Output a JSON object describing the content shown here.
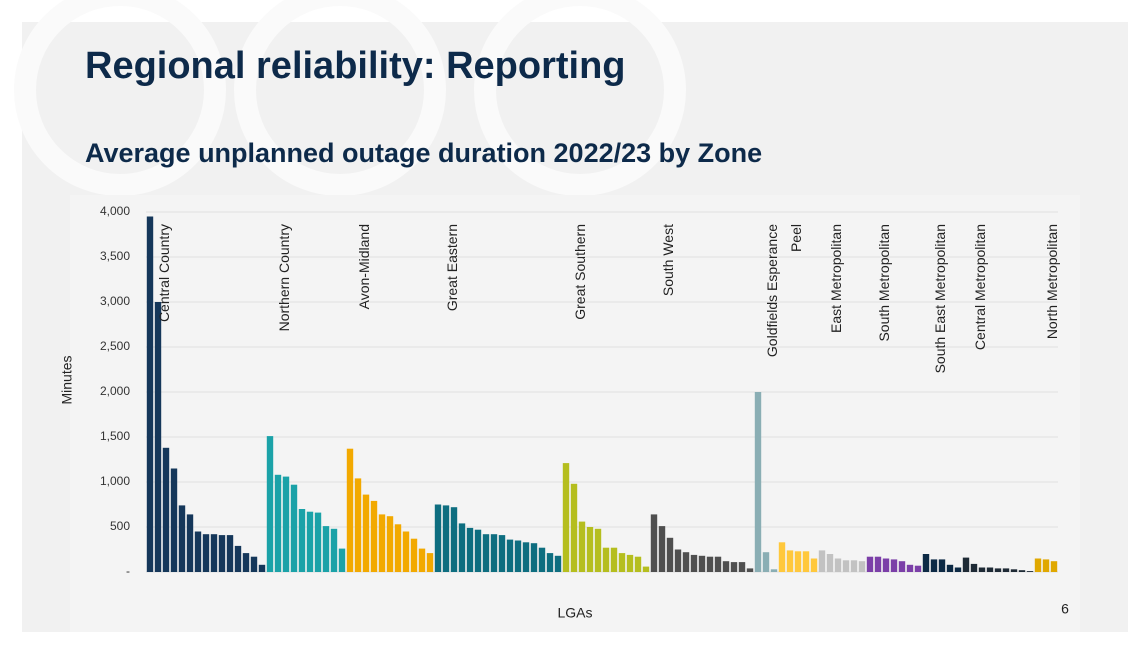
{
  "slide_title": "Regional reliability: Reporting",
  "page_number": "6",
  "chart_data": {
    "type": "bar",
    "title": "Average unplanned outage duration 2022/23 by Zone",
    "ylabel": "Minutes",
    "xlabel": "LGAs",
    "ylim": [
      0,
      4000
    ],
    "yticks": [
      {
        "value": 0,
        "label": "-"
      },
      500,
      {
        "value": 1000,
        "label": "1,000"
      },
      {
        "value": 1500,
        "label": "1,500"
      },
      {
        "value": 2000,
        "label": "2,000"
      },
      {
        "value": 2500,
        "label": "2,500"
      },
      {
        "value": 3000,
        "label": "3,000"
      },
      {
        "value": 3500,
        "label": "3,500"
      },
      {
        "value": 4000,
        "label": "4,000"
      }
    ],
    "grid": true,
    "series": [
      {
        "name": "Central Country",
        "color": "#15375a",
        "values": [
          3950,
          3000,
          1380,
          1150,
          740,
          640,
          450,
          420,
          420,
          410,
          410,
          290,
          210,
          170,
          80
        ]
      },
      {
        "name": "Northern Country",
        "color": "#1ba2a8",
        "values": [
          1510,
          1080,
          1060,
          970,
          700,
          670,
          660,
          510,
          480,
          260
        ]
      },
      {
        "name": "Avon-Midland",
        "color": "#f2a900",
        "values": [
          1370,
          1040,
          860,
          790,
          640,
          620,
          530,
          450,
          370,
          260,
          210
        ]
      },
      {
        "name": "Great Eastern",
        "color": "#0e6e80",
        "values": [
          750,
          740,
          720,
          540,
          490,
          470,
          420,
          420,
          410,
          360,
          350,
          330,
          320,
          270,
          210,
          180
        ]
      },
      {
        "name": "Great Southern",
        "color": "#b5be1e",
        "values": [
          1210,
          980,
          560,
          500,
          480,
          270,
          270,
          210,
          190,
          170,
          60
        ]
      },
      {
        "name": "South West",
        "color": "#4f4f4f",
        "values": [
          640,
          510,
          380,
          250,
          220,
          190,
          180,
          170,
          170,
          120,
          110,
          110,
          40
        ]
      },
      {
        "name": "Goldfields Esperance",
        "color": "#8aaeb4",
        "values": [
          2000,
          220,
          30
        ]
      },
      {
        "name": "Peel",
        "color": "#ffc83c",
        "values": [
          330,
          240,
          230,
          230,
          150
        ]
      },
      {
        "name": "East Metropolitan",
        "color": "#c2c2c2",
        "values": [
          240,
          200,
          150,
          130,
          130,
          120
        ]
      },
      {
        "name": "South Metropolitan",
        "color": "#7b3fa8",
        "values": [
          170,
          170,
          150,
          140,
          120,
          80,
          70
        ]
      },
      {
        "name": "South East Metropolitan",
        "color": "#0d2a45",
        "values": [
          200,
          140,
          140,
          80,
          50
        ]
      },
      {
        "name": "Central Metropolitan",
        "color": "#1e2a35",
        "values": [
          160,
          90,
          50,
          50,
          40,
          40,
          30,
          20,
          10
        ]
      },
      {
        "name": "North Metropolitan",
        "color": "#e0a800",
        "values": [
          150,
          140,
          120
        ]
      }
    ]
  }
}
